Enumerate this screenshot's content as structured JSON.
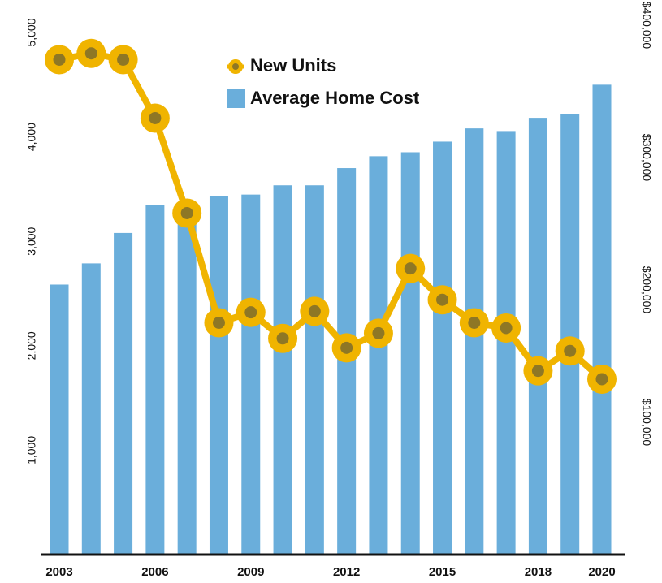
{
  "chart_data": {
    "type": "combo",
    "x": [
      2003,
      2004,
      2005,
      2006,
      2007,
      2008,
      2009,
      2010,
      2011,
      2012,
      2013,
      2014,
      2015,
      2016,
      2017,
      2018,
      2019,
      2020
    ],
    "xticks": [
      2003,
      2006,
      2009,
      2012,
      2015,
      2018,
      2020
    ],
    "xlim": [
      2003,
      2020
    ],
    "ylim": [
      0,
      5070
    ],
    "yticks": [
      {
        "value": 1000,
        "label": "1,000"
      },
      {
        "value": 2000,
        "label": "2,000"
      },
      {
        "value": 3000,
        "label": "3,000"
      },
      {
        "value": 4000,
        "label": "4,000"
      },
      {
        "value": 5000,
        "label": "5,000"
      }
    ],
    "y2lim": [
      0,
      400000
    ],
    "y2ticks": [
      {
        "value": 100000,
        "label": "$100,000"
      },
      {
        "value": 200000,
        "label": "$200,000"
      },
      {
        "value": 300000,
        "label": "$300,000"
      },
      {
        "value": 400000,
        "label": "$400,000"
      }
    ],
    "series": [
      {
        "name": "Average Home Cost",
        "type": "bar",
        "axis": "y2",
        "color": "#6aaedb",
        "values": [
          204000,
          220000,
          243000,
          264000,
          263000,
          271000,
          272000,
          279000,
          279000,
          292000,
          301000,
          304000,
          312000,
          322000,
          320000,
          330000,
          333000,
          355000
        ]
      },
      {
        "name": "New Units",
        "type": "line",
        "color": "#f0b400",
        "values": [
          4740,
          4800,
          4740,
          4180,
          3270,
          2220,
          2320,
          2070,
          2330,
          1980,
          2120,
          2740,
          2440,
          2220,
          2170,
          1760,
          1950,
          1680
        ]
      }
    ]
  }
}
